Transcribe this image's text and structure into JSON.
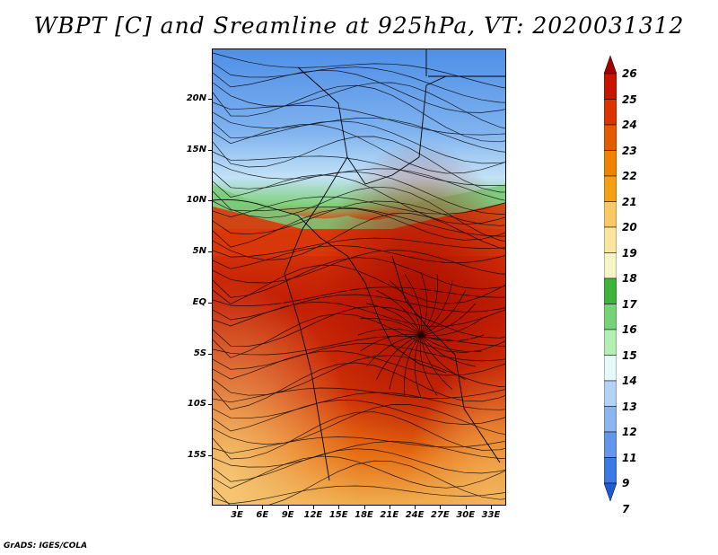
{
  "title": "WBPT [C] and Sreamline at 925hPa, VT: 2020031312",
  "footer": "GrADS: IGES/COLA",
  "latitude_labels": [
    "20N",
    "15N",
    "10N",
    "5N",
    "EQ",
    "5S",
    "10S",
    "15S"
  ],
  "longitude_labels": [
    "3E",
    "6E",
    "9E",
    "12E",
    "15E",
    "18E",
    "21E",
    "24E",
    "27E",
    "30E",
    "33E"
  ],
  "colorbar": {
    "labels": [
      "26",
      "25",
      "24",
      "23",
      "22",
      "21",
      "20",
      "19",
      "18",
      "17",
      "16",
      "15",
      "14",
      "13",
      "12",
      "11",
      "9",
      "7"
    ],
    "colors": [
      "#a50000",
      "#c81400",
      "#dc3200",
      "#e65a00",
      "#f08200",
      "#f5a014",
      "#fac864",
      "#fae6a0",
      "#f5f5c8",
      "#3cb43c",
      "#78d278",
      "#b4f0b4",
      "#e6fafa",
      "#b4d2f5",
      "#8cb4f0",
      "#6496eb",
      "#3c78e6",
      "#1e5ad2"
    ]
  }
}
